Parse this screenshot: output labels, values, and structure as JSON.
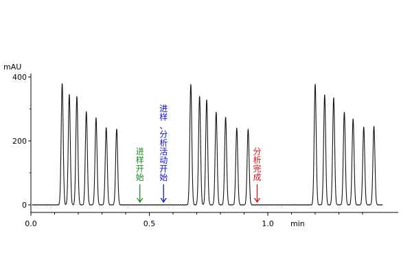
{
  "chart_data": {
    "type": "line",
    "title": "",
    "y_unit_label": "mAU",
    "x_unit_label": "min",
    "xlim": [
      0.0,
      1.5
    ],
    "ylim": [
      -20,
      440
    ],
    "x_ticks": [
      {
        "value": 0.0,
        "label": "0.0"
      },
      {
        "value": 0.5,
        "label": "0.5"
      },
      {
        "value": 1.0,
        "label": "1.0"
      }
    ],
    "y_ticks": [
      {
        "value": 0,
        "label": "0"
      },
      {
        "value": 200,
        "label": "200"
      },
      {
        "value": 400,
        "label": "400"
      }
    ],
    "grid": false,
    "series": [
      {
        "color": "#111111",
        "baseline": 0,
        "peak_width_min": 0.0042,
        "peaks": [
          {
            "x": 0.132,
            "y": 380
          },
          {
            "x": 0.162,
            "y": 345
          },
          {
            "x": 0.194,
            "y": 340
          },
          {
            "x": 0.234,
            "y": 292
          },
          {
            "x": 0.275,
            "y": 272
          },
          {
            "x": 0.318,
            "y": 242
          },
          {
            "x": 0.362,
            "y": 238
          },
          {
            "x": 0.675,
            "y": 378
          },
          {
            "x": 0.712,
            "y": 340
          },
          {
            "x": 0.742,
            "y": 328
          },
          {
            "x": 0.782,
            "y": 290
          },
          {
            "x": 0.822,
            "y": 275
          },
          {
            "x": 0.869,
            "y": 240
          },
          {
            "x": 0.917,
            "y": 236
          },
          {
            "x": 1.2,
            "y": 378
          },
          {
            "x": 1.24,
            "y": 345
          },
          {
            "x": 1.278,
            "y": 335
          },
          {
            "x": 1.323,
            "y": 290
          },
          {
            "x": 1.36,
            "y": 270
          },
          {
            "x": 1.405,
            "y": 243
          },
          {
            "x": 1.448,
            "y": 245
          }
        ]
      }
    ],
    "annotations": [
      {
        "text_lines": [
          "进",
          "样",
          "开",
          "始"
        ],
        "x": 0.46,
        "color": "#1a8a1a"
      },
      {
        "text_lines": [
          "进",
          "样",
          "、",
          "分",
          "析",
          "活",
          "动",
          "开",
          "始"
        ],
        "x": 0.56,
        "color": "#1010e0"
      },
      {
        "text_lines": [
          "分",
          "析",
          "完",
          "成"
        ],
        "x": 0.955,
        "color": "#e01010"
      }
    ]
  }
}
